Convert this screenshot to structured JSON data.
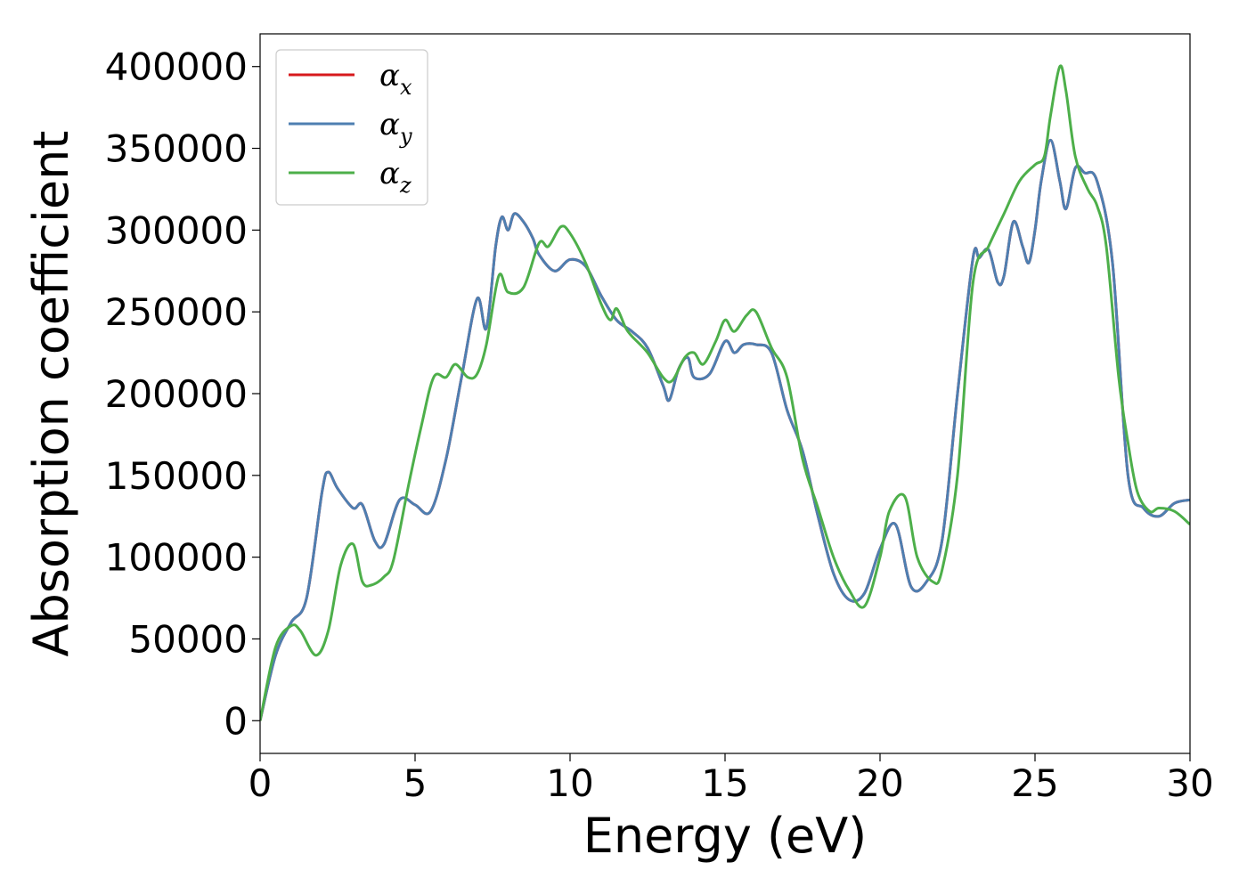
{
  "chart_data": {
    "type": "line",
    "xlabel": "Energy (eV)",
    "ylabel": "Absorption coefficient",
    "xlim": [
      0,
      30
    ],
    "ylim": [
      -20000,
      420000
    ],
    "x_ticks": [
      "0",
      "5",
      "10",
      "15",
      "20",
      "25",
      "30"
    ],
    "y_ticks": [
      "0",
      "50000",
      "100000",
      "150000",
      "200000",
      "250000",
      "300000",
      "350000",
      "400000"
    ],
    "grid": false,
    "legend_position": "top-left",
    "series": [
      {
        "name": "αx",
        "legend_base": "α",
        "legend_sub": "x",
        "color": "#d7191c",
        "x": [
          0,
          0.5,
          1.0,
          1.5,
          2.0,
          2.2,
          2.5,
          3.0,
          3.3,
          3.7,
          4.0,
          4.5,
          5.0,
          5.5,
          6.0,
          6.5,
          7.0,
          7.3,
          7.6,
          7.8,
          8.0,
          8.2,
          8.5,
          8.8,
          9.0,
          9.5,
          10.0,
          10.5,
          11.0,
          11.5,
          12.0,
          12.5,
          13.0,
          13.2,
          13.5,
          13.8,
          14.0,
          14.5,
          15.0,
          15.3,
          15.6,
          16.0,
          16.5,
          17.0,
          17.5,
          18.0,
          18.5,
          19.0,
          19.5,
          20.0,
          20.5,
          21.0,
          21.5,
          22.0,
          22.5,
          23.0,
          23.2,
          23.5,
          23.8,
          24.0,
          24.3,
          24.6,
          24.8,
          25.0,
          25.2,
          25.5,
          25.8,
          26.0,
          26.3,
          26.6,
          27.0,
          27.5,
          28.0,
          28.5,
          29.0,
          29.5,
          30.0
        ],
        "y": [
          0,
          40000,
          60000,
          75000,
          140000,
          152000,
          142000,
          130000,
          132000,
          110000,
          108000,
          135000,
          132000,
          128000,
          160000,
          210000,
          258000,
          240000,
          290000,
          308000,
          300000,
          310000,
          305000,
          295000,
          285000,
          275000,
          282000,
          278000,
          260000,
          245000,
          238000,
          228000,
          205000,
          196000,
          215000,
          222000,
          210000,
          212000,
          232000,
          225000,
          230000,
          230000,
          225000,
          190000,
          165000,
          125000,
          90000,
          74000,
          78000,
          105000,
          120000,
          82000,
          85000,
          110000,
          200000,
          283000,
          283000,
          288000,
          268000,
          272000,
          305000,
          290000,
          280000,
          300000,
          330000,
          355000,
          330000,
          313000,
          338000,
          335000,
          330000,
          280000,
          150000,
          130000,
          125000,
          133000,
          135000
        ]
      },
      {
        "name": "αy",
        "legend_base": "α",
        "legend_sub": "y",
        "color": "#4e7fb1",
        "x": [
          0,
          0.5,
          1.0,
          1.5,
          2.0,
          2.2,
          2.5,
          3.0,
          3.3,
          3.7,
          4.0,
          4.5,
          5.0,
          5.5,
          6.0,
          6.5,
          7.0,
          7.3,
          7.6,
          7.8,
          8.0,
          8.2,
          8.5,
          8.8,
          9.0,
          9.5,
          10.0,
          10.5,
          11.0,
          11.5,
          12.0,
          12.5,
          13.0,
          13.2,
          13.5,
          13.8,
          14.0,
          14.5,
          15.0,
          15.3,
          15.6,
          16.0,
          16.5,
          17.0,
          17.5,
          18.0,
          18.5,
          19.0,
          19.5,
          20.0,
          20.5,
          21.0,
          21.5,
          22.0,
          22.5,
          23.0,
          23.2,
          23.5,
          23.8,
          24.0,
          24.3,
          24.6,
          24.8,
          25.0,
          25.2,
          25.5,
          25.8,
          26.0,
          26.3,
          26.6,
          27.0,
          27.5,
          28.0,
          28.5,
          29.0,
          29.5,
          30.0
        ],
        "y": [
          0,
          40000,
          60000,
          75000,
          140000,
          152000,
          142000,
          130000,
          132000,
          110000,
          108000,
          135000,
          132000,
          128000,
          160000,
          210000,
          258000,
          240000,
          290000,
          308000,
          300000,
          310000,
          305000,
          295000,
          285000,
          275000,
          282000,
          278000,
          260000,
          245000,
          238000,
          228000,
          205000,
          196000,
          215000,
          222000,
          210000,
          212000,
          232000,
          225000,
          230000,
          230000,
          225000,
          190000,
          165000,
          125000,
          90000,
          74000,
          78000,
          105000,
          120000,
          82000,
          85000,
          110000,
          200000,
          283000,
          283000,
          288000,
          268000,
          272000,
          305000,
          290000,
          280000,
          300000,
          330000,
          355000,
          330000,
          313000,
          338000,
          335000,
          330000,
          280000,
          150000,
          130000,
          125000,
          133000,
          135000
        ]
      },
      {
        "name": "αz",
        "legend_base": "α",
        "legend_sub": "z",
        "color": "#4daf4a",
        "x": [
          0,
          0.5,
          1.0,
          1.3,
          1.8,
          2.2,
          2.6,
          3.0,
          3.3,
          3.6,
          4.0,
          4.3,
          4.8,
          5.2,
          5.6,
          6.0,
          6.3,
          6.7,
          7.0,
          7.3,
          7.7,
          8.0,
          8.5,
          9.0,
          9.3,
          9.7,
          10.0,
          10.5,
          11.0,
          11.3,
          11.5,
          11.8,
          12.0,
          12.5,
          13.0,
          13.3,
          13.7,
          14.0,
          14.3,
          14.7,
          15.0,
          15.3,
          15.7,
          16.0,
          16.5,
          17.0,
          17.5,
          18.0,
          18.5,
          19.0,
          19.5,
          20.0,
          20.3,
          20.8,
          21.2,
          21.7,
          22.0,
          22.5,
          23.0,
          23.5,
          24.0,
          24.5,
          25.0,
          25.3,
          25.5,
          25.8,
          26.0,
          26.3,
          26.7,
          27.0,
          27.3,
          27.7,
          28.0,
          28.3,
          28.7,
          29.0,
          29.5,
          30.0
        ],
        "y": [
          0,
          45000,
          58000,
          55000,
          40000,
          55000,
          95000,
          108000,
          85000,
          83000,
          88000,
          98000,
          145000,
          180000,
          210000,
          210000,
          218000,
          210000,
          212000,
          230000,
          272000,
          262000,
          265000,
          292000,
          290000,
          302000,
          298000,
          280000,
          255000,
          245000,
          252000,
          240000,
          235000,
          225000,
          210000,
          208000,
          222000,
          225000,
          218000,
          232000,
          245000,
          238000,
          248000,
          250000,
          228000,
          210000,
          160000,
          130000,
          100000,
          80000,
          70000,
          100000,
          128000,
          137000,
          100000,
          85000,
          92000,
          150000,
          268000,
          290000,
          310000,
          330000,
          340000,
          345000,
          370000,
          400000,
          385000,
          345000,
          325000,
          315000,
          290000,
          210000,
          170000,
          140000,
          128000,
          130000,
          128000,
          120000
        ]
      }
    ]
  }
}
